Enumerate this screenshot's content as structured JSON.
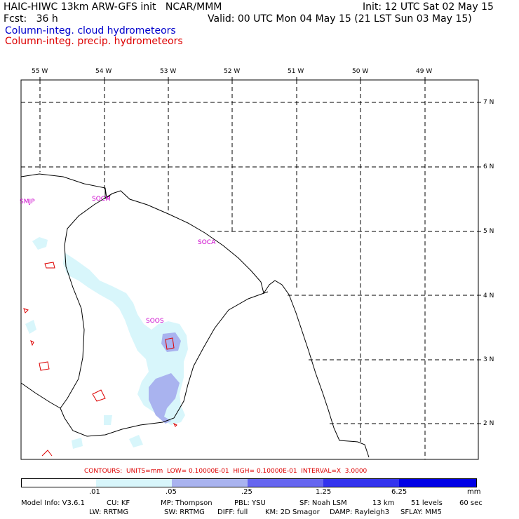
{
  "header": {
    "line1_left": "HAIC-HIWC 13km ARW-GFS init   NCAR/MMM",
    "line1_right": "Init: 12 UTC Sat 02 May 15",
    "line2_left": "Fcst:   36 h",
    "line2_right": "Valid: 00 UTC Mon 04 May 15 (21 LST Sun 03 May 15)",
    "legend_blue": "Column-integ. cloud hydrometeors",
    "legend_red": "Column-integ. precip. hydrometeors"
  },
  "colors": {
    "cloud_text": "#0000cc",
    "precip_text": "#dd0000",
    "station_text": "#cc00cc",
    "shade_1": "#d8f6fb",
    "shade_2": "#a9b3ef",
    "shade_3": "#6666f0",
    "shade_4": "#3333ee",
    "shade_5": "#0000e6"
  },
  "map": {
    "lon_labels": [
      "55 W",
      "54 W",
      "53 W",
      "52 W",
      "51 W",
      "50 W",
      "49 W"
    ],
    "lat_labels": [
      "7 N",
      "6 N",
      "5 N",
      "4 N",
      "3 N",
      "2 N"
    ],
    "stations": [
      "SMJP",
      "SOCM",
      "SOCA",
      "SOOS"
    ]
  },
  "contours_line": "CONTOURS:  UNITS=mm  LOW= 0.10000E-01  HIGH= 0.10000E-01  INTERVAL=X  3.0000",
  "colorbar": {
    "labels": [
      ".01",
      ".05",
      ".25",
      "1.25",
      "6.25",
      "mm"
    ]
  },
  "model_info": {
    "line1": {
      "model": "Model Info: V3.6.1",
      "cu": "CU: KF",
      "mp": "MP: Thompson",
      "pbl": "PBL: YSU",
      "sf": "SF: Noah LSM",
      "res": "13 km",
      "levels": "51 levels",
      "dt": "60 sec"
    },
    "line2": {
      "lw": "LW: RRTMG",
      "sw": "SW: RRTMG",
      "diff": "DIFF: full",
      "km": "KM: 2D Smagor",
      "damp": "DAMP: Rayleigh3",
      "sflay": "SFLAY: MM5"
    }
  }
}
